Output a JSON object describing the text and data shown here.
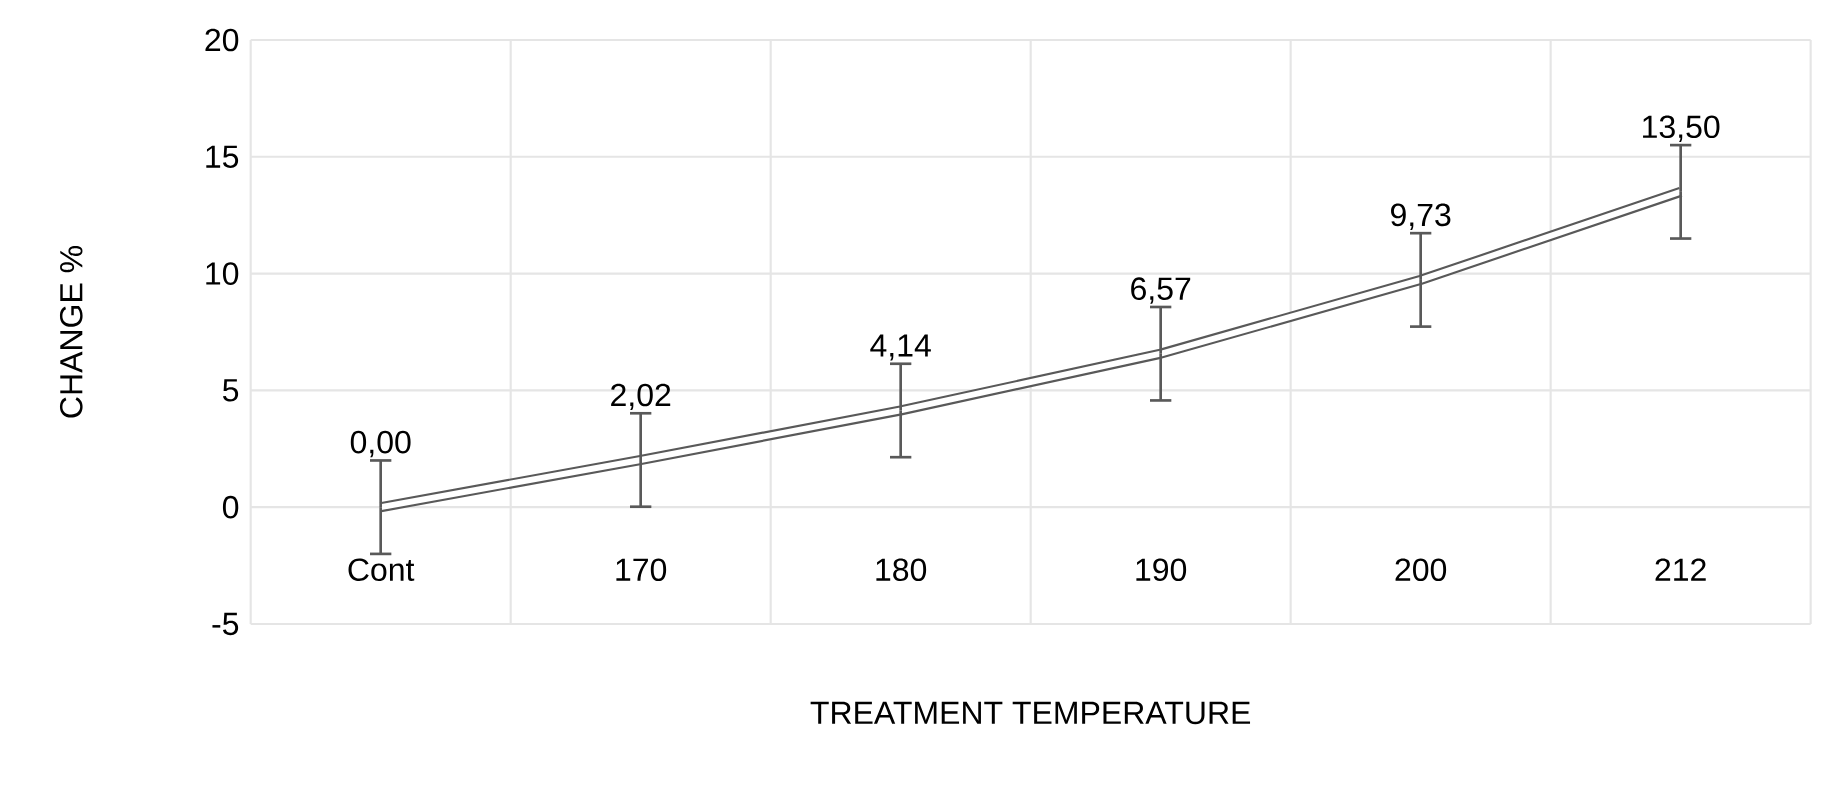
{
  "chart_data": {
    "type": "line",
    "xlabel": "TREATMENT TEMPERATURE",
    "ylabel": "CHANGE %",
    "categories": [
      "Cont",
      "170",
      "180",
      "190",
      "200",
      "212"
    ],
    "series": [
      {
        "color": "#595959",
        "values": [
          0.0,
          2.02,
          4.14,
          6.57,
          9.73,
          13.5
        ],
        "errors": [
          2,
          2,
          2,
          2,
          2,
          2
        ],
        "value_labels": [
          "0,00",
          "2,02",
          "4,14",
          "6,57",
          "9,73",
          "13,50"
        ]
      }
    ],
    "ylim": [
      -5,
      20
    ],
    "yticks": [
      -5,
      0,
      5,
      10,
      15,
      20
    ],
    "grid": true,
    "marker": "none"
  }
}
